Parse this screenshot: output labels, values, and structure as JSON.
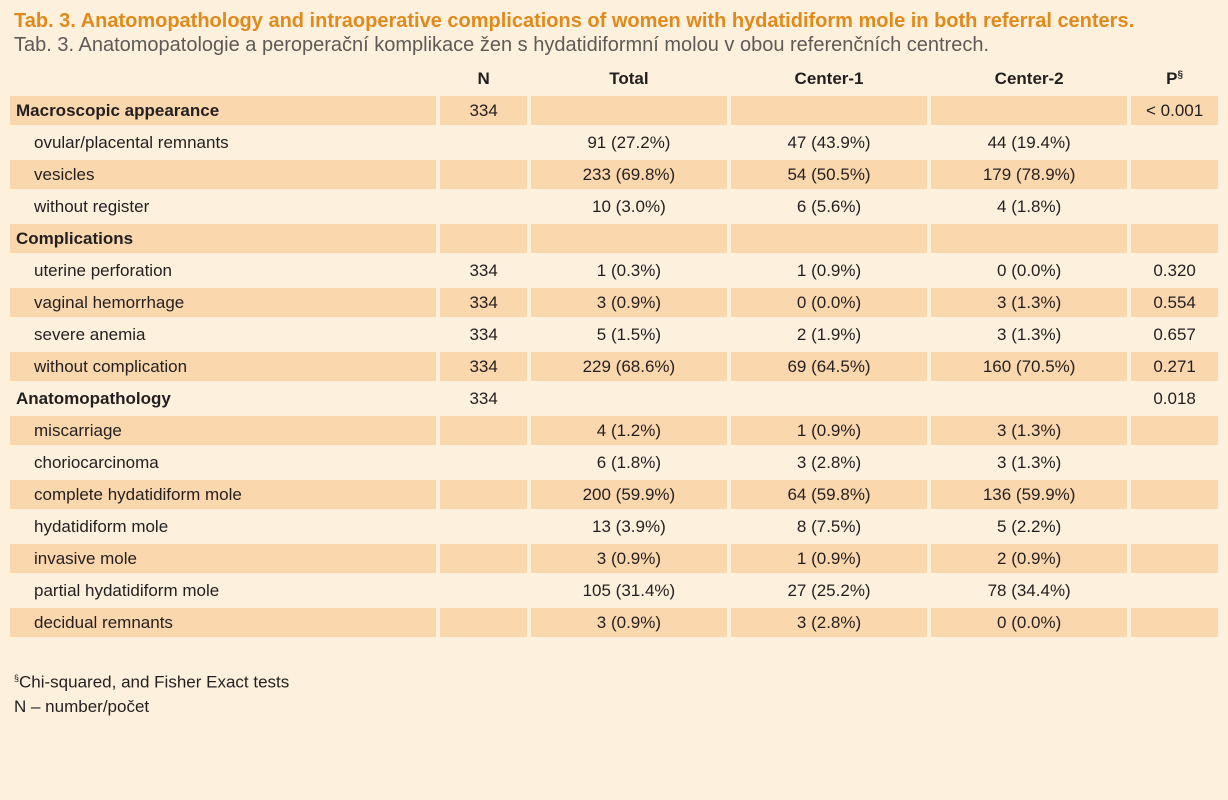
{
  "title_en": "Tab. 3. Anatomopathology and intraoperative complications of women with hydatidiform mole in both referral centers.",
  "title_cz": "Tab. 3. Anatomopatologie a peroperační komplikace žen s hydatidiformní molou v obou referenčních centrech.",
  "headers": {
    "n": "N",
    "total": "Total",
    "center1": "Center-1",
    "center2": "Center-2",
    "p": "P",
    "p_sup": "§"
  },
  "rows": [
    {
      "label": "Macroscopic appearance",
      "n": "334",
      "total": "",
      "c1": "",
      "c2": "",
      "p": "< 0.001"
    },
    {
      "label": "ovular/placental remnants",
      "n": "",
      "total": "91 (27.2%)",
      "c1": "47 (43.9%)",
      "c2": "44 (19.4%)",
      "p": ""
    },
    {
      "label": "vesicles",
      "n": "",
      "total": "233 (69.8%)",
      "c1": "54 (50.5%)",
      "c2": "179 (78.9%)",
      "p": ""
    },
    {
      "label": "without register",
      "n": "",
      "total": "10 (3.0%)",
      "c1": "6 (5.6%)",
      "c2": "4 (1.8%)",
      "p": ""
    },
    {
      "label": "Complications",
      "n": "",
      "total": "",
      "c1": "",
      "c2": "",
      "p": ""
    },
    {
      "label": "uterine perforation",
      "n": "334",
      "total": "1 (0.3%)",
      "c1": "1 (0.9%)",
      "c2": "0 (0.0%)",
      "p": "0.320"
    },
    {
      "label": "vaginal hemorrhage",
      "n": "334",
      "total": "3 (0.9%)",
      "c1": "0 (0.0%)",
      "c2": "3 (1.3%)",
      "p": "0.554"
    },
    {
      "label": "severe anemia",
      "n": "334",
      "total": "5 (1.5%)",
      "c1": "2 (1.9%)",
      "c2": "3 (1.3%)",
      "p": "0.657"
    },
    {
      "label": "without complication",
      "n": "334",
      "total": "229 (68.6%)",
      "c1": "69 (64.5%)",
      "c2": "160 (70.5%)",
      "p": "0.271"
    },
    {
      "label": "Anatomopathology",
      "n": "334",
      "total": "",
      "c1": "",
      "c2": "",
      "p": "0.018"
    },
    {
      "label": "miscarriage",
      "n": "",
      "total": "4 (1.2%)",
      "c1": "1 (0.9%)",
      "c2": "3 (1.3%)",
      "p": ""
    },
    {
      "label": "choriocarcinoma",
      "n": "",
      "total": "6 (1.8%)",
      "c1": "3 (2.8%)",
      "c2": "3 (1.3%)",
      "p": ""
    },
    {
      "label": "complete hydatidiform mole",
      "n": "",
      "total": "200 (59.9%)",
      "c1": "64 (59.8%)",
      "c2": "136 (59.9%)",
      "p": ""
    },
    {
      "label": "hydatidiform mole",
      "n": "",
      "total": "13 (3.9%)",
      "c1": "8 (7.5%)",
      "c2": "5 (2.2%)",
      "p": ""
    },
    {
      "label": "invasive mole",
      "n": "",
      "total": "3 (0.9%)",
      "c1": "1 (0.9%)",
      "c2": "2 (0.9%)",
      "p": ""
    },
    {
      "label": "partial hydatidiform mole",
      "n": "",
      "total": "105 (31.4%)",
      "c1": "27 (25.2%)",
      "c2": "78 (34.4%)",
      "p": ""
    },
    {
      "label": "decidual remnants",
      "n": "",
      "total": "3 (0.9%)",
      "c1": "3 (2.8%)",
      "c2": "0 (0.0%)",
      "p": ""
    }
  ],
  "footnotes": {
    "sup": "§",
    "line1": "Chi-squared, and Fisher Exact tests",
    "line2": "N – number/počet"
  },
  "colors": {
    "background": "#fdf1de",
    "shade": "#fbd7ad",
    "title_orange": "#e08a1c"
  }
}
